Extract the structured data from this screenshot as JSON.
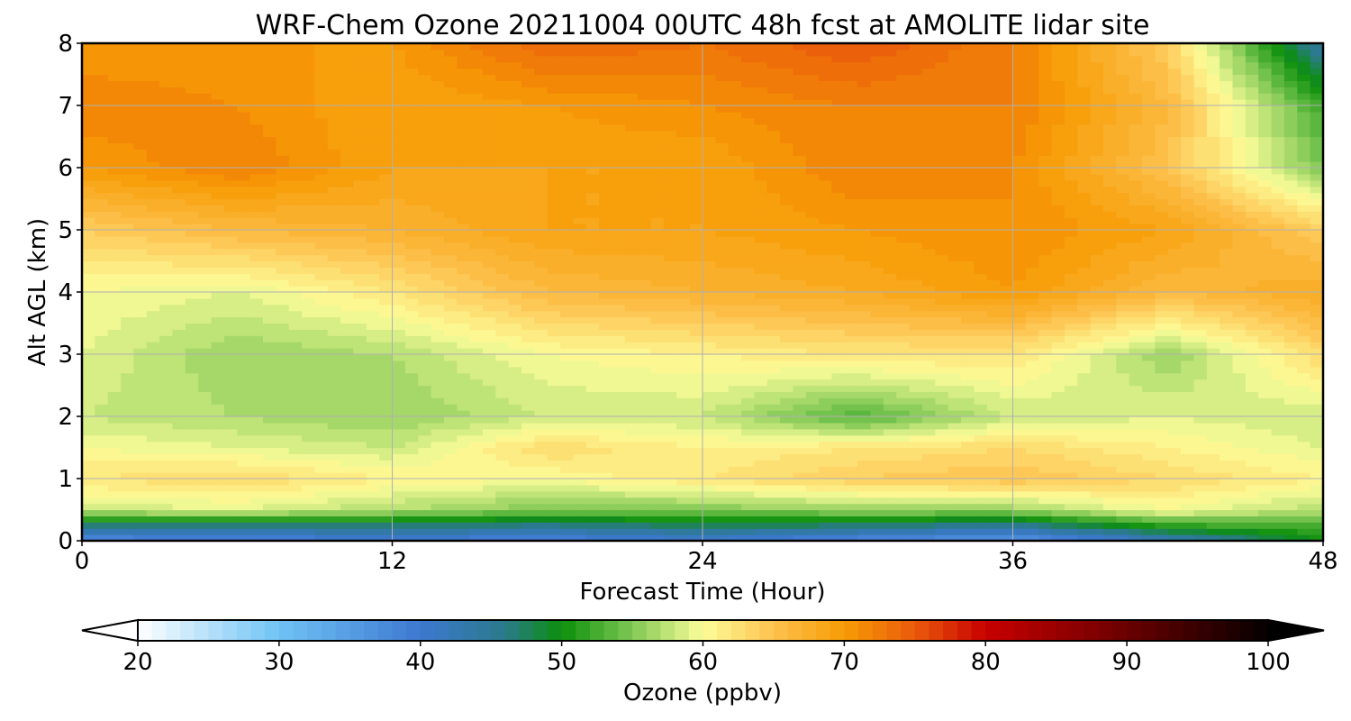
{
  "chart_data": {
    "type": "heatmap",
    "title": "WRF-Chem Ozone  20211004 00UTC 48h fcst at AMOLITE lidar site",
    "xlabel": "Forecast Time (Hour)",
    "ylabel": "Alt AGL (km)",
    "xlim": [
      0,
      48
    ],
    "ylim": [
      0,
      8
    ],
    "xticks": [
      "0",
      "12",
      "24",
      "36",
      "48"
    ],
    "yticks": [
      "0",
      "1",
      "2",
      "3",
      "4",
      "5",
      "6",
      "7",
      "8"
    ],
    "grid": true,
    "colorbar": {
      "label": "Ozone  (ppbv)",
      "range": [
        20,
        100
      ],
      "ticks": [
        "20",
        "30",
        "40",
        "50",
        "60",
        "70",
        "80",
        "90",
        "100"
      ],
      "extend": "both",
      "colors": [
        {
          "v": 20,
          "c": "#ffffff"
        },
        {
          "v": 30,
          "c": "#6fc3f5"
        },
        {
          "v": 40,
          "c": "#3d78d0"
        },
        {
          "v": 46,
          "c": "#2a7a8a"
        },
        {
          "v": 50,
          "c": "#0b8f0b"
        },
        {
          "v": 55,
          "c": "#7fc854"
        },
        {
          "v": 60,
          "c": "#fdfd9a"
        },
        {
          "v": 65,
          "c": "#fdc24e"
        },
        {
          "v": 70,
          "c": "#f79b05"
        },
        {
          "v": 75,
          "c": "#ea5a0c"
        },
        {
          "v": 80,
          "c": "#c80000"
        },
        {
          "v": 90,
          "c": "#6a0000"
        },
        {
          "v": 100,
          "c": "#050000"
        }
      ]
    },
    "x": [
      0,
      6,
      12,
      18,
      24,
      30,
      36,
      42,
      48
    ],
    "y": [
      0,
      0.2,
      0.5,
      1,
      1.5,
      2,
      3,
      4,
      5,
      6,
      7,
      8
    ],
    "values": [
      [
        37,
        38,
        39,
        38,
        40,
        37,
        35,
        42,
        50
      ],
      [
        44,
        44,
        45,
        44,
        46,
        45,
        43,
        50,
        52
      ],
      [
        58,
        59,
        57,
        55,
        55,
        56,
        56,
        60,
        57
      ],
      [
        62,
        63,
        61,
        60,
        62,
        64,
        65,
        63,
        61
      ],
      [
        60,
        59,
        58,
        63,
        61,
        62,
        63,
        61,
        59
      ],
      [
        58,
        57,
        56,
        58,
        58,
        53,
        58,
        59,
        58
      ],
      [
        59,
        56,
        57,
        60,
        61,
        62,
        62,
        56,
        63
      ],
      [
        60,
        59,
        62,
        66,
        67,
        68,
        70,
        66,
        68
      ],
      [
        64,
        66,
        67,
        69,
        69,
        70,
        71,
        69,
        64
      ],
      [
        70,
        72,
        69,
        69,
        69,
        72,
        71,
        65,
        55
      ],
      [
        72,
        71,
        69,
        70,
        71,
        72,
        72,
        66,
        52
      ],
      [
        70,
        70,
        70,
        74,
        73,
        75,
        72,
        64,
        44
      ]
    ]
  }
}
